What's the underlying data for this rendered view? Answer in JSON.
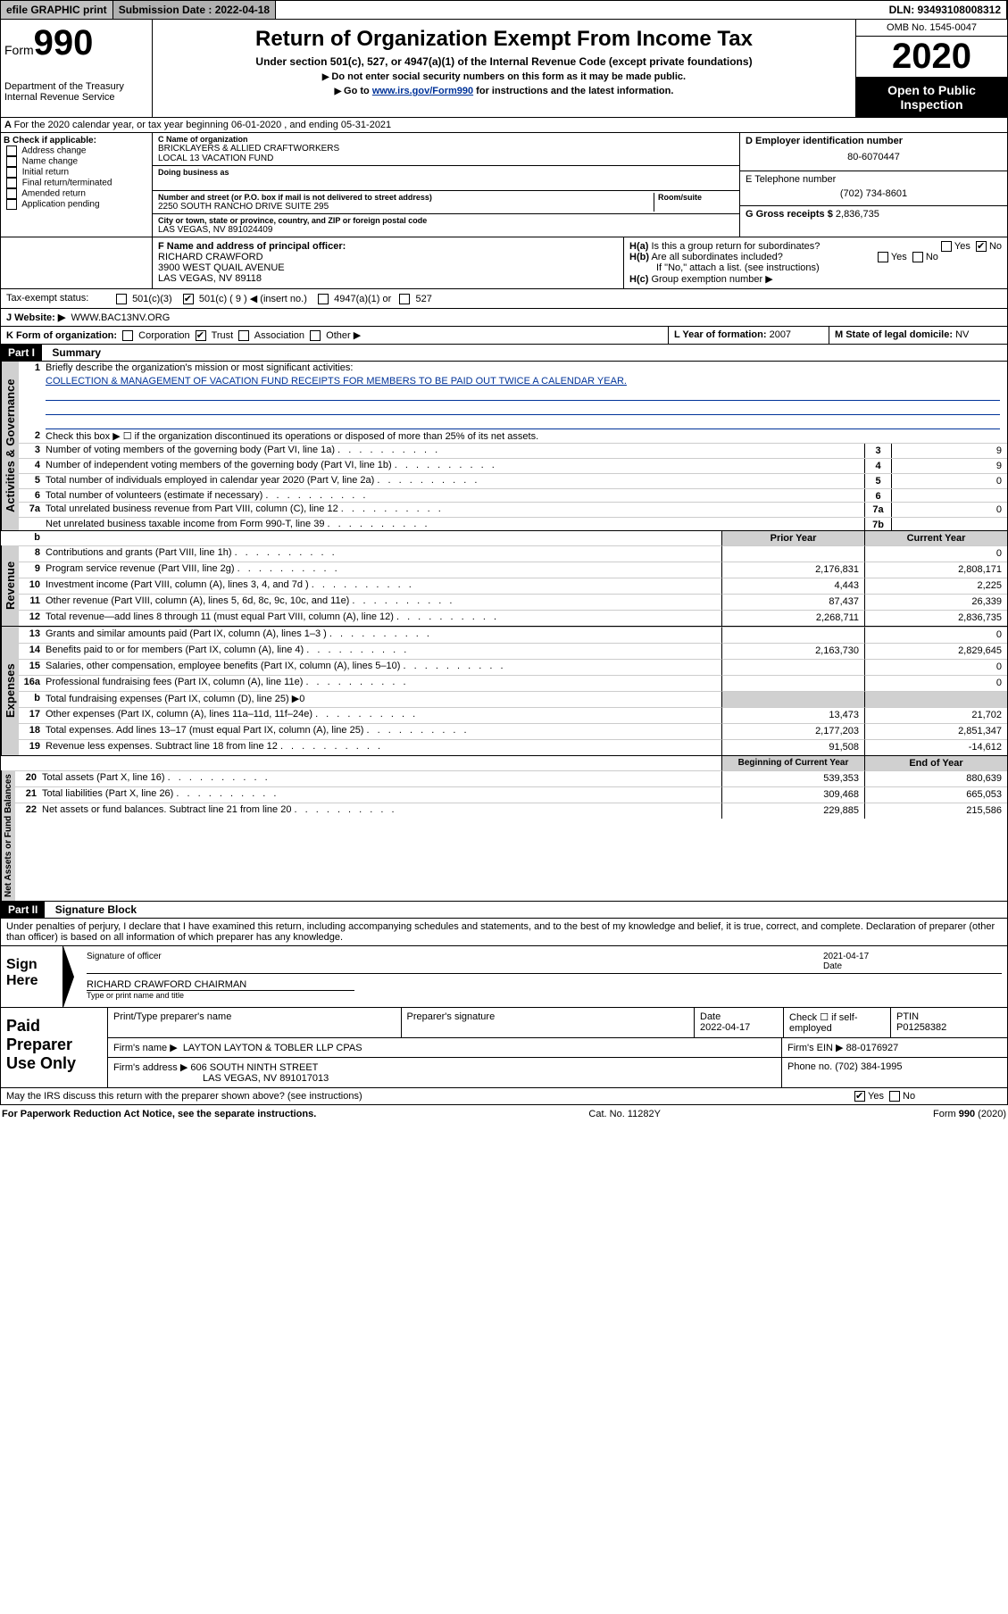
{
  "topbar": {
    "efile": "efile GRAPHIC print",
    "sub_label": "Submission Date : 2022-04-18",
    "dln": "DLN: 93493108008312"
  },
  "header": {
    "form_label": "Form",
    "form_num": "990",
    "dept": "Department of the Treasury\nInternal Revenue Service",
    "title": "Return of Organization Exempt From Income Tax",
    "subtitle": "Under section 501(c), 527, or 4947(a)(1) of the Internal Revenue Code (except private foundations)",
    "note1": "Do not enter social security numbers on this form as it may be made public.",
    "note2_pre": "Go to ",
    "note2_link": "www.irs.gov/Form990",
    "note2_post": " for instructions and the latest information.",
    "omb": "OMB No. 1545-0047",
    "year": "2020",
    "open": "Open to Public Inspection"
  },
  "secA": "For the 2020 calendar year, or tax year beginning 06-01-2020   , and ending 05-31-2021",
  "secB": {
    "label": "B Check if applicable:",
    "items": [
      "Address change",
      "Name change",
      "Initial return",
      "Final return/terminated",
      "Amended return",
      "Application pending"
    ]
  },
  "secC": {
    "name_label": "C Name of organization",
    "name": "BRICKLAYERS & ALLIED CRAFTWORKERS\nLOCAL 13 VACATION FUND",
    "dba_label": "Doing business as",
    "street_label": "Number and street (or P.O. box if mail is not delivered to street address)",
    "room_label": "Room/suite",
    "street": "2250 SOUTH RANCHO DRIVE SUITE 295",
    "city_label": "City or town, state or province, country, and ZIP or foreign postal code",
    "city": "LAS VEGAS, NV  891024409"
  },
  "secD": {
    "label": "D Employer identification number",
    "val": "80-6070447"
  },
  "secE": {
    "label": "E Telephone number",
    "val": "(702) 734-8601"
  },
  "secG": {
    "label": "G Gross receipts $",
    "val": "2,836,735"
  },
  "secF": {
    "label": "F  Name and address of principal officer:",
    "name": "RICHARD CRAWFORD",
    "addr1": "3900 WEST QUAIL AVENUE",
    "addr2": "LAS VEGAS, NV  89118"
  },
  "secH": {
    "ha": "Is this a group return for subordinates?",
    "hb": "Are all subordinates included?",
    "hb_note": "If \"No,\" attach a list. (see instructions)",
    "hc": "Group exemption number ▶"
  },
  "taxExempt": {
    "label": "Tax-exempt status:",
    "c3": "501(c)(3)",
    "cx": "501(c) ( 9 ) ◀ (insert no.)",
    "a1": "4947(a)(1) or",
    "s527": "527"
  },
  "secJ": {
    "label": "J   Website: ▶",
    "val": "WWW.BAC13NV.ORG"
  },
  "secK": {
    "label": "K Form of organization:",
    "corp": "Corporation",
    "trust": "Trust",
    "assoc": "Association",
    "other": "Other ▶"
  },
  "secL": {
    "label": "L Year of formation:",
    "val": "2007"
  },
  "secM": {
    "label": "M State of legal domicile:",
    "val": "NV"
  },
  "part1": {
    "hdr": "Part I",
    "title": "Summary",
    "l1_label": "Briefly describe the organization's mission or most significant activities:",
    "l1_text": "COLLECTION & MANAGEMENT OF VACATION FUND RECEIPTS FOR MEMBERS TO BE PAID OUT TWICE A CALENDAR YEAR.",
    "l2": "Check this box ▶ ☐  if the organization discontinued its operations or disposed of more than 25% of its net assets.",
    "lines_gov": [
      {
        "n": "3",
        "t": "Number of voting members of the governing body (Part VI, line 1a)",
        "k": "3",
        "v": "9"
      },
      {
        "n": "4",
        "t": "Number of independent voting members of the governing body (Part VI, line 1b)",
        "k": "4",
        "v": "9"
      },
      {
        "n": "5",
        "t": "Total number of individuals employed in calendar year 2020 (Part V, line 2a)",
        "k": "5",
        "v": "0"
      },
      {
        "n": "6",
        "t": "Total number of volunteers (estimate if necessary)",
        "k": "6",
        "v": ""
      },
      {
        "n": "7a",
        "t": "Total unrelated business revenue from Part VIII, column (C), line 12",
        "k": "7a",
        "v": "0"
      },
      {
        "n": "",
        "t": "Net unrelated business taxable income from Form 990-T, line 39",
        "k": "7b",
        "v": ""
      }
    ],
    "col_prior": "Prior Year",
    "col_curr": "Current Year",
    "revenue": [
      {
        "n": "8",
        "t": "Contributions and grants (Part VIII, line 1h)",
        "p": "",
        "c": "0"
      },
      {
        "n": "9",
        "t": "Program service revenue (Part VIII, line 2g)",
        "p": "2,176,831",
        "c": "2,808,171"
      },
      {
        "n": "10",
        "t": "Investment income (Part VIII, column (A), lines 3, 4, and 7d )",
        "p": "4,443",
        "c": "2,225"
      },
      {
        "n": "11",
        "t": "Other revenue (Part VIII, column (A), lines 5, 6d, 8c, 9c, 10c, and 11e)",
        "p": "87,437",
        "c": "26,339"
      },
      {
        "n": "12",
        "t": "Total revenue—add lines 8 through 11 (must equal Part VIII, column (A), line 12)",
        "p": "2,268,711",
        "c": "2,836,735"
      }
    ],
    "expenses": [
      {
        "n": "13",
        "t": "Grants and similar amounts paid (Part IX, column (A), lines 1–3 )",
        "p": "",
        "c": "0"
      },
      {
        "n": "14",
        "t": "Benefits paid to or for members (Part IX, column (A), line 4)",
        "p": "2,163,730",
        "c": "2,829,645"
      },
      {
        "n": "15",
        "t": "Salaries, other compensation, employee benefits (Part IX, column (A), lines 5–10)",
        "p": "",
        "c": "0"
      },
      {
        "n": "16a",
        "t": "Professional fundraising fees (Part IX, column (A), line 11e)",
        "p": "",
        "c": "0"
      },
      {
        "n": "b",
        "t": "Total fundraising expenses (Part IX, column (D), line 25) ▶0",
        "p": "—",
        "c": "—"
      },
      {
        "n": "17",
        "t": "Other expenses (Part IX, column (A), lines 11a–11d, 11f–24e)",
        "p": "13,473",
        "c": "21,702"
      },
      {
        "n": "18",
        "t": "Total expenses. Add lines 13–17 (must equal Part IX, column (A), line 25)",
        "p": "2,177,203",
        "c": "2,851,347"
      },
      {
        "n": "19",
        "t": "Revenue less expenses. Subtract line 18 from line 12",
        "p": "91,508",
        "c": "-14,612"
      }
    ],
    "col_begin": "Beginning of Current Year",
    "col_end": "End of Year",
    "netassets": [
      {
        "n": "20",
        "t": "Total assets (Part X, line 16)",
        "p": "539,353",
        "c": "880,639"
      },
      {
        "n": "21",
        "t": "Total liabilities (Part X, line 26)",
        "p": "309,468",
        "c": "665,053"
      },
      {
        "n": "22",
        "t": "Net assets or fund balances. Subtract line 21 from line 20",
        "p": "229,885",
        "c": "215,586"
      }
    ]
  },
  "part2": {
    "hdr": "Part II",
    "title": "Signature Block",
    "decl": "Under penalties of perjury, I declare that I have examined this return, including accompanying schedules and statements, and to the best of my knowledge and belief, it is true, correct, and complete. Declaration of preparer (other than officer) is based on all information of which preparer has any knowledge."
  },
  "sign": {
    "label": "Sign Here",
    "sig_label": "Signature of officer",
    "date_label": "Date",
    "date": "2021-04-17",
    "name": "RICHARD CRAWFORD CHAIRMAN",
    "name_label": "Type or print name and title"
  },
  "prep": {
    "label": "Paid Preparer Use Only",
    "pname_label": "Print/Type preparer's name",
    "psig_label": "Preparer's signature",
    "pdate_label": "Date",
    "pdate": "2022-04-17",
    "self_label": "Check ☐ if self-employed",
    "ptin_label": "PTIN",
    "ptin": "P01258382",
    "firm_name_label": "Firm's name    ▶",
    "firm_name": "LAYTON LAYTON & TOBLER LLP CPAS",
    "firm_ein_label": "Firm's EIN ▶",
    "firm_ein": "88-0176927",
    "firm_addr_label": "Firm's address ▶",
    "firm_addr1": "606 SOUTH NINTH STREET",
    "firm_addr2": "LAS VEGAS, NV  891017013",
    "phone_label": "Phone no.",
    "phone": "(702) 384-1995"
  },
  "discuss": "May the IRS discuss this return with the preparer shown above? (see instructions)",
  "footer": {
    "left": "For Paperwork Reduction Act Notice, see the separate instructions.",
    "mid": "Cat. No. 11282Y",
    "right": "Form 990 (2020)"
  },
  "labels": {
    "gov": "Activities & Governance",
    "rev": "Revenue",
    "exp": "Expenses",
    "net": "Net Assets or Fund Balances"
  }
}
